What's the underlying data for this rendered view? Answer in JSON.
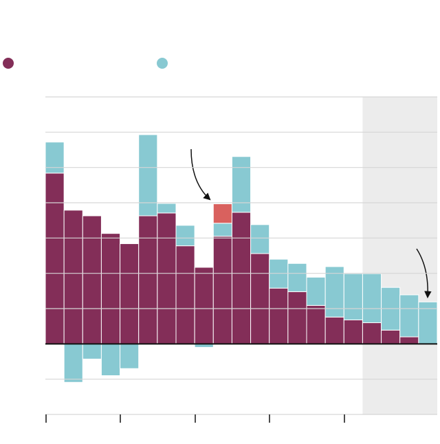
{
  "chart_data": {
    "type": "stacked_bar",
    "categories": [
      null,
      null,
      null,
      null,
      null,
      null,
      null,
      null,
      null,
      null,
      null,
      null,
      null,
      null,
      null,
      null,
      null,
      null,
      null,
      null,
      null
    ],
    "series": [
      {
        "color": "#832e58",
        "values": [
          4.84,
          3.79,
          3.63,
          3.13,
          2.84,
          3.63,
          3.71,
          2.78,
          2.17,
          3.05,
          3.73,
          2.56,
          1.58,
          1.48,
          1.09,
          0.76,
          0.68,
          0.6,
          0.39,
          0.2,
          0
        ]
      },
      {
        "color": "#88c9d2",
        "values": [
          0.88,
          -1.09,
          -0.43,
          -0.9,
          -0.7,
          2.3,
          0.27,
          0.58,
          -0.1,
          0.37,
          1.58,
          0.82,
          0.82,
          0.8,
          0.8,
          1.43,
          1.31,
          1.39,
          1.21,
          1.19,
          1.19
        ]
      },
      {
        "color": "#d9615e",
        "values": [
          null,
          null,
          null,
          null,
          null,
          null,
          null,
          null,
          null,
          0.55,
          null,
          null,
          null,
          null,
          null,
          null,
          null,
          null,
          null,
          null,
          null
        ]
      }
    ],
    "legend_series": [
      0,
      1
    ],
    "shaded_from": 17,
    "ylim": [
      -2,
      7
    ],
    "yticks": [
      -1,
      0,
      1,
      2,
      3,
      4,
      5,
      6,
      7
    ],
    "grid": true
  }
}
